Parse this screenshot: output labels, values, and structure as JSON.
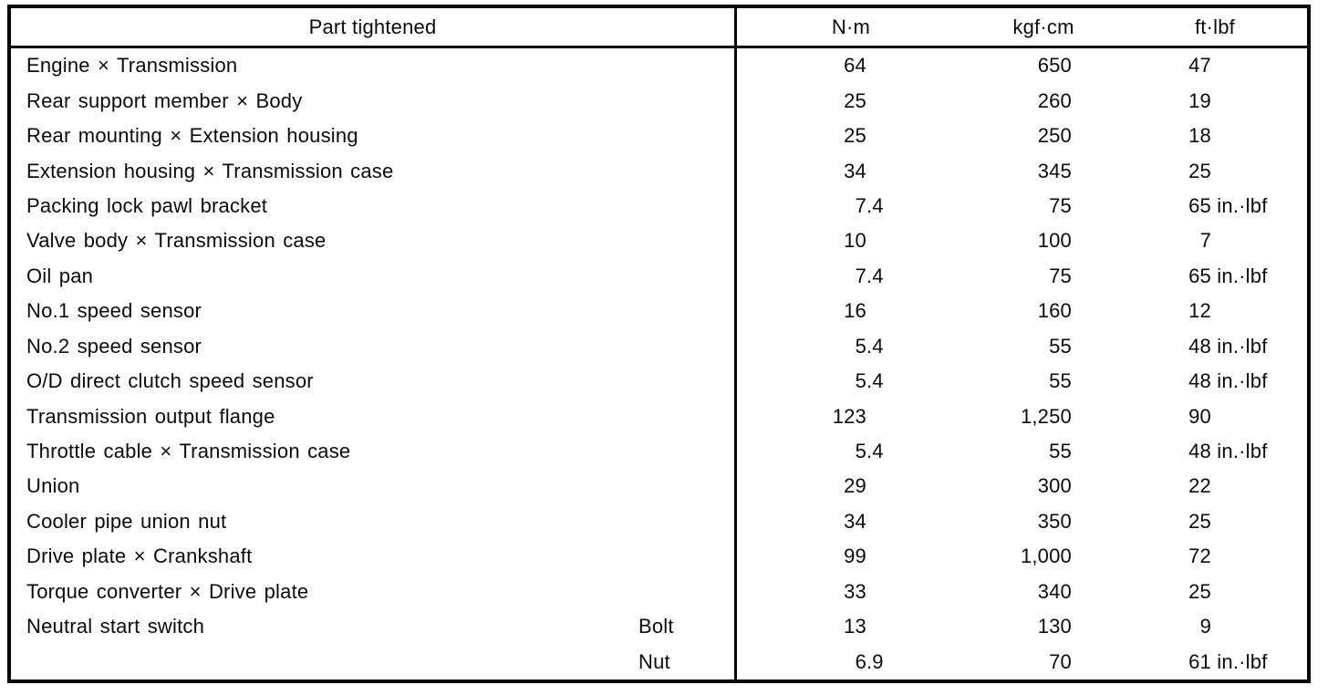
{
  "table": {
    "header": {
      "part_col": "Part tightened",
      "unit_cols": [
        "N·m",
        "kgf·cm",
        "ft·lbf"
      ]
    },
    "rows": [
      {
        "part": "Engine × Transmission",
        "sub": "",
        "nm": "64",
        "kgf": "650",
        "ft": "47"
      },
      {
        "part": "Rear support member × Body",
        "sub": "",
        "nm": "25",
        "kgf": "260",
        "ft": "19"
      },
      {
        "part": "Rear mounting × Extension housing",
        "sub": "",
        "nm": "25",
        "kgf": "250",
        "ft": "18"
      },
      {
        "part": "Extension housing × Transmission case",
        "sub": "",
        "nm": "34",
        "kgf": "345",
        "ft": "25"
      },
      {
        "part": "Packing lock pawl bracket",
        "sub": "",
        "nm": "7.4",
        "kgf": "75",
        "ft": "65 in.·lbf"
      },
      {
        "part": "Valve body × Transmission case",
        "sub": "",
        "nm": "10",
        "kgf": "100",
        "ft": "7"
      },
      {
        "part": "Oil pan",
        "sub": "",
        "nm": "7.4",
        "kgf": "75",
        "ft": "65 in.·lbf"
      },
      {
        "part": "No.1 speed sensor",
        "sub": "",
        "nm": "16",
        "kgf": "160",
        "ft": "12"
      },
      {
        "part": "No.2 speed sensor",
        "sub": "",
        "nm": "5.4",
        "kgf": "55",
        "ft": "48 in.·lbf"
      },
      {
        "part": "O/D direct clutch speed sensor",
        "sub": "",
        "nm": "5.4",
        "kgf": "55",
        "ft": "48 in.·lbf"
      },
      {
        "part": "Transmission output flange",
        "sub": "",
        "nm": "123",
        "kgf": "1,250",
        "ft": "90"
      },
      {
        "part": "Throttle cable × Transmission case",
        "sub": "",
        "nm": "5.4",
        "kgf": "55",
        "ft": "48 in.·lbf"
      },
      {
        "part": "Union",
        "sub": "",
        "nm": "29",
        "kgf": "300",
        "ft": "22"
      },
      {
        "part": "Cooler pipe union nut",
        "sub": "",
        "nm": "34",
        "kgf": "350",
        "ft": "25"
      },
      {
        "part": "Drive plate × Crankshaft",
        "sub": "",
        "nm": "99",
        "kgf": "1,000",
        "ft": "72"
      },
      {
        "part": "Torque converter × Drive plate",
        "sub": "",
        "nm": "33",
        "kgf": "340",
        "ft": "25"
      },
      {
        "part": "Neutral start switch",
        "sub": "Bolt",
        "nm": "13",
        "kgf": "130",
        "ft": "9"
      },
      {
        "part": "",
        "sub": "Nut",
        "nm": "6.9",
        "kgf": "70",
        "ft": "61 in.·lbf"
      }
    ]
  }
}
